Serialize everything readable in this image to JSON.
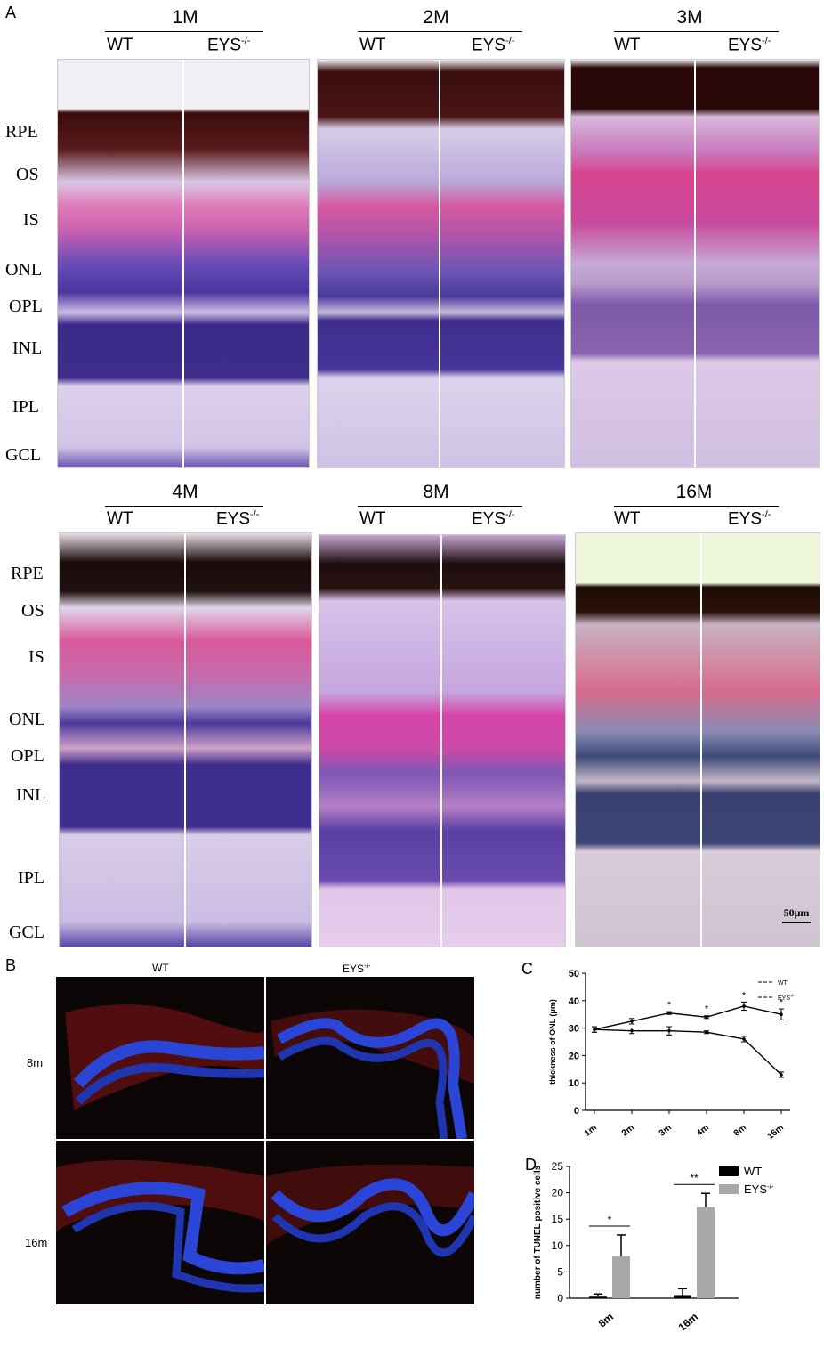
{
  "panels": {
    "a": "A",
    "b": "B",
    "c": "C",
    "d": "D"
  },
  "panel_a": {
    "ages_row1": [
      "1M",
      "2M",
      "3M"
    ],
    "ages_row2": [
      "4M",
      "8M",
      "16M"
    ],
    "wt_label": "WT",
    "eys_label": "EYS",
    "eys_sup": "-/-",
    "layers": [
      "RPE",
      "OS",
      "IS",
      "ONL",
      "OPL",
      "INL",
      "IPL",
      "GCL"
    ],
    "scale_bar": "50μm",
    "colors": {
      "rpe": "#3a0d0d",
      "os": "#d8c8ea",
      "is": "#d04a9a",
      "onl": "#5a3fa6",
      "inl": "#3c2a85",
      "ipl": "#d7c6e6"
    }
  },
  "panel_b": {
    "wt_label": "WT",
    "eys_label": "EYS",
    "eys_sup": "-/-",
    "rows": [
      "8m",
      "16m"
    ],
    "colors": {
      "background": "#0c0606",
      "nuclei": "#2b45d6",
      "tunel": "#b0201a"
    }
  },
  "chart_data": [
    {
      "type": "line",
      "panel": "C",
      "categories": [
        "1m",
        "2m",
        "3m",
        "4m",
        "8m",
        "16m"
      ],
      "ylabel": "thickness of ONL (μm)",
      "ylim": [
        0,
        50
      ],
      "yticks": [
        0,
        10,
        20,
        30,
        40,
        50
      ],
      "legend": {
        "wt": "WT",
        "eys": "EYS",
        "eys_sup": "-/-"
      },
      "legend_position": "top-right",
      "series": [
        {
          "name": "WT",
          "values": [
            29.5,
            32.5,
            35.5,
            34,
            38,
            35
          ],
          "errors": [
            1,
            1,
            0.5,
            0.5,
            1.5,
            2
          ]
        },
        {
          "name": "EYS-/-",
          "values": [
            29.5,
            29,
            29,
            28.5,
            26,
            13
          ],
          "errors": [
            1,
            1,
            1.5,
            0.5,
            1,
            1
          ]
        }
      ],
      "significance": [
        "",
        "",
        "*",
        "*",
        "*",
        "*"
      ],
      "colors": {
        "line": "#000000"
      }
    },
    {
      "type": "bar",
      "panel": "D",
      "categories": [
        "8m",
        "16m"
      ],
      "ylabel": "number of TUNEL positive cells",
      "ylim": [
        0,
        25
      ],
      "yticks": [
        0,
        5,
        10,
        15,
        20,
        25
      ],
      "legend": {
        "wt": "WT",
        "eys": "EYS",
        "eys_sup": "-/-"
      },
      "legend_position": "top-right",
      "series": [
        {
          "name": "WT",
          "values": [
            0.3,
            0.6
          ],
          "errors": [
            0.5,
            1.2
          ],
          "color": "#000000"
        },
        {
          "name": "EYS-/-",
          "values": [
            8,
            17.3
          ],
          "errors": [
            4,
            2.6
          ],
          "color": "#a9a9a9"
        }
      ],
      "significance": [
        "*",
        "**"
      ]
    }
  ]
}
